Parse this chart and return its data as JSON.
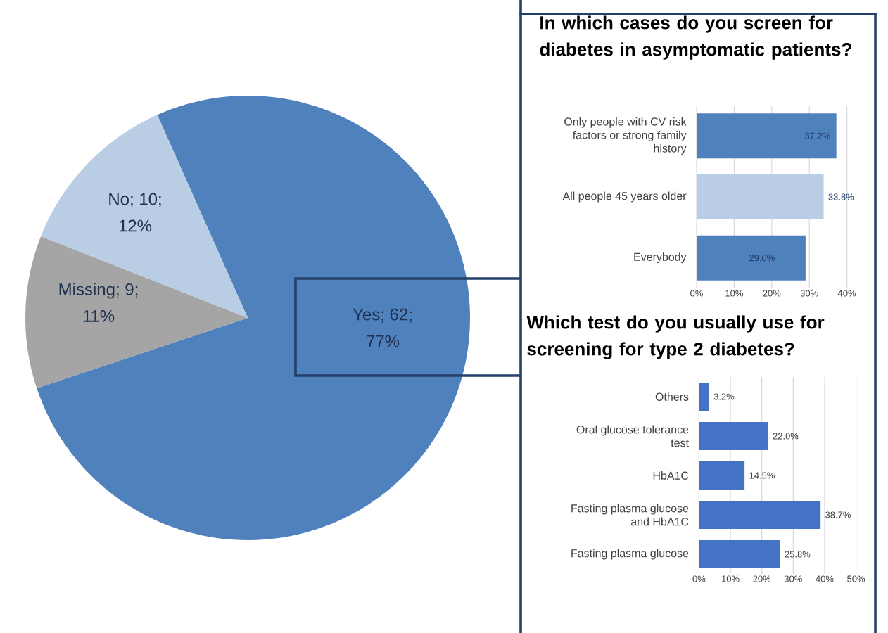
{
  "chart_data": [
    {
      "type": "pie",
      "categories": [
        null,
        null,
        null
      ],
      "values": [
        62,
        9,
        10
      ],
      "value_labels": [
        "Yes; 62; 77%",
        "Missing; 9; 11%",
        "No; 10; 12%"
      ],
      "colors": [
        "#4f81bd",
        "#a5a5a5",
        "#b9cde5"
      ]
    },
    {
      "type": "bar",
      "orientation": "horizontal",
      "title": "In which cases do you screen for diabetes in asymptomatic patients?",
      "categories": [
        "Only people with CV risk factors or strong family history",
        "All people 45 years older",
        "Everybody"
      ],
      "values": [
        37.2,
        33.8,
        29.0
      ],
      "value_labels": [
        "37.2%",
        "33.8%",
        "29.0%"
      ],
      "colors": [
        "#4f81bd",
        "#b9cde5",
        "#4f81bd"
      ],
      "xlim": [
        0,
        40
      ],
      "xticks": [
        {
          "value": 0,
          "label": "0%"
        },
        {
          "value": 10,
          "label": "10%"
        },
        {
          "value": 20,
          "label": "20%"
        },
        {
          "value": 30,
          "label": "30%"
        },
        {
          "value": 40,
          "label": "40%"
        }
      ],
      "grid": "x"
    },
    {
      "type": "bar",
      "orientation": "horizontal",
      "title": "Which test do you usually use for screening for type 2 diabetes?",
      "categories": [
        "Others",
        "Oral glucose tolerance test",
        "HbA1C",
        "Fasting plasma glucose and HbA1C",
        "Fasting plasma glucose"
      ],
      "values": [
        3.2,
        22.0,
        14.5,
        38.7,
        25.8
      ],
      "value_labels": [
        "3.2%",
        "22.0%",
        "14.5%",
        "38.7%",
        "25.8%"
      ],
      "color": "#4472c4",
      "xlim": [
        0,
        50
      ],
      "xticks": [
        {
          "value": 0,
          "label": "0%"
        },
        {
          "value": 10,
          "label": "10%"
        },
        {
          "value": 20,
          "label": "20%"
        },
        {
          "value": 30,
          "label": "30%"
        },
        {
          "value": 40,
          "label": "40%"
        },
        {
          "value": 50,
          "label": "50%"
        }
      ],
      "grid": "x"
    }
  ]
}
